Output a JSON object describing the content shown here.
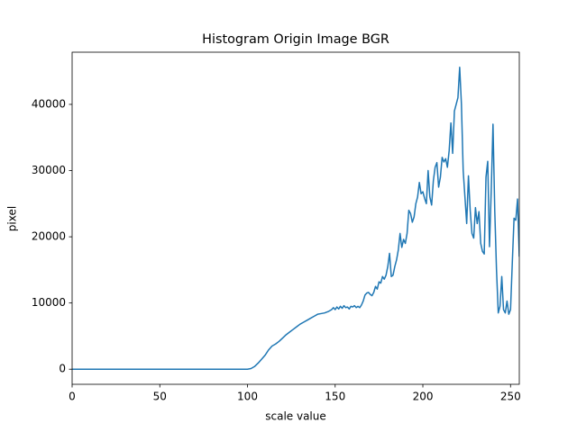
{
  "chart_data": {
    "type": "line",
    "title": "Histogram Origin Image BGR",
    "x_label": "scale value",
    "y_label": "pixel",
    "x": [
      0,
      100,
      102,
      104,
      106,
      108,
      110,
      112,
      114,
      116,
      118,
      120,
      122,
      124,
      126,
      128,
      130,
      132,
      134,
      136,
      138,
      140,
      142,
      144,
      146,
      148,
      149,
      150,
      151,
      152,
      153,
      154,
      155,
      156,
      157,
      158,
      159,
      160,
      161,
      162,
      163,
      164,
      165,
      166,
      167,
      168,
      169,
      170,
      171,
      172,
      173,
      174,
      175,
      176,
      177,
      178,
      179,
      180,
      181,
      182,
      183,
      184,
      185,
      186,
      187,
      188,
      189,
      190,
      191,
      192,
      193,
      194,
      195,
      196,
      197,
      198,
      199,
      200,
      201,
      202,
      203,
      204,
      205,
      206,
      207,
      208,
      209,
      210,
      211,
      212,
      213,
      214,
      215,
      216,
      217,
      218,
      219,
      220,
      221,
      222,
      223,
      224,
      225,
      226,
      227,
      228,
      229,
      230,
      231,
      232,
      233,
      234,
      235,
      236,
      237,
      238,
      239,
      240,
      241,
      242,
      243,
      244,
      245,
      246,
      247,
      248,
      249,
      250,
      251,
      252,
      253,
      254,
      255
    ],
    "series": [
      {
        "color": "#1f77b4",
        "values": [
          0,
          0,
          100,
          400,
          900,
          1500,
          2100,
          2900,
          3500,
          3800,
          4200,
          4700,
          5200,
          5600,
          6000,
          6400,
          6800,
          7100,
          7400,
          7700,
          8000,
          8300,
          8400,
          8500,
          8700,
          9000,
          9300,
          9000,
          9400,
          9100,
          9500,
          9200,
          9600,
          9300,
          9400,
          9100,
          9500,
          9400,
          9600,
          9300,
          9500,
          9300,
          9700,
          10300,
          11200,
          11500,
          11600,
          11300,
          11100,
          11600,
          12500,
          12100,
          13200,
          13000,
          14000,
          13600,
          14200,
          15500,
          17500,
          14000,
          14200,
          15500,
          16500,
          18000,
          20500,
          18400,
          19600,
          19000,
          20500,
          24000,
          23500,
          22200,
          23000,
          25000,
          26000,
          28200,
          26500,
          26800,
          25800,
          25000,
          30000,
          26000,
          24800,
          28500,
          30500,
          31200,
          27500,
          29000,
          32000,
          31300,
          31800,
          30500,
          33000,
          37200,
          32600,
          39000,
          40000,
          41000,
          45600,
          40000,
          30000,
          26000,
          22000,
          29200,
          24000,
          20500,
          19800,
          24400,
          22000,
          23800,
          19000,
          17800,
          17400,
          29000,
          31400,
          18500,
          27000,
          37000,
          24000,
          15000,
          8500,
          9500,
          14000,
          9000,
          8500,
          10300,
          8300,
          9000,
          16000,
          22800,
          22500,
          25700,
          17000
        ]
      }
    ],
    "xlim": [
      0,
      255
    ],
    "ylim": [
      -2280,
      47880
    ],
    "xticks": [
      0,
      50,
      100,
      150,
      200,
      250
    ],
    "yticks": [
      0,
      10000,
      20000,
      30000,
      40000
    ]
  }
}
